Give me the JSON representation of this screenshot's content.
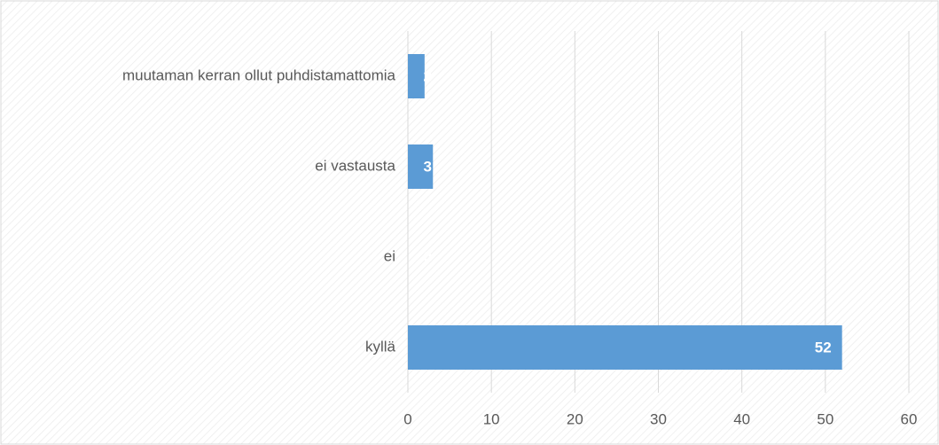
{
  "chart_data": {
    "type": "bar",
    "orientation": "horizontal",
    "categories": [
      "muutaman kerran ollut puhdistamattomia",
      "ei vastausta",
      "ei",
      "kyllä"
    ],
    "values": [
      2,
      3,
      0,
      52
    ],
    "color": "#5b9bd5",
    "xlim": [
      0,
      60
    ],
    "xticks": [
      0,
      10,
      20,
      30,
      40,
      50,
      60
    ],
    "grid": true
  }
}
